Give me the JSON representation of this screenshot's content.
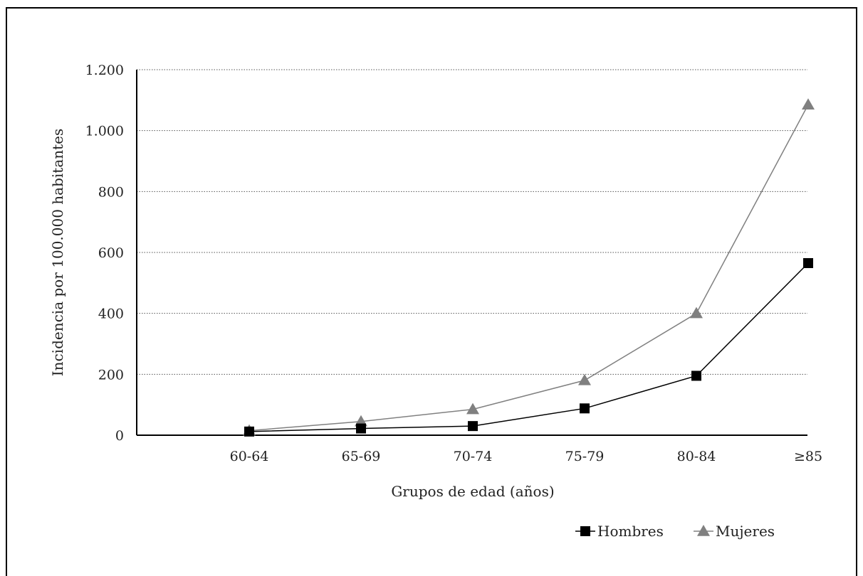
{
  "chart_data": {
    "type": "line",
    "title": "",
    "xlabel": "Grupos de edad (años)",
    "ylabel": "Incidencia por 100.000 habitantes",
    "categories": [
      "60-64",
      "65-69",
      "70-74",
      "75-79",
      "80-84",
      "≥85"
    ],
    "ylim": [
      0,
      1200
    ],
    "yticks": [
      0,
      200,
      400,
      600,
      800,
      1000,
      1200
    ],
    "ytick_labels": [
      "0",
      "200",
      "400",
      "600",
      "800",
      "1.000",
      "1.200"
    ],
    "grid": "horizontal-dotted",
    "legend_position": "bottom-right",
    "series": [
      {
        "name": "Hombres",
        "marker": "square",
        "color": "#000000",
        "values": [
          12,
          22,
          30,
          88,
          195,
          565
        ]
      },
      {
        "name": "Mujeres",
        "marker": "triangle",
        "color": "#808080",
        "values": [
          15,
          45,
          85,
          180,
          400,
          1085
        ]
      }
    ]
  }
}
